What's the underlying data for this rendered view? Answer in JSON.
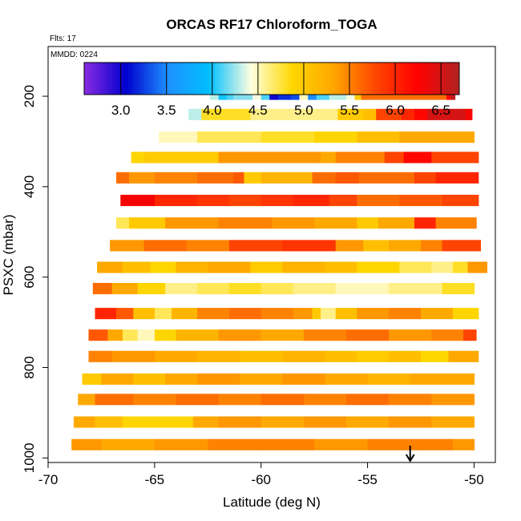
{
  "chart_data": {
    "type": "heatmap",
    "title": "ORCAS RF17 Chloroform_TOGA",
    "flights_label": "Flts: 17",
    "date_label": "MMDD: 0224",
    "xlabel": "Latitude (deg N)",
    "ylabel": "PSXC (mbar)",
    "xlim": [
      -70,
      -49
    ],
    "ylim": [
      1010,
      90
    ],
    "x_ticks": [
      -70,
      -65,
      -60,
      -55,
      -50
    ],
    "y_ticks": [
      200,
      400,
      600,
      800,
      1000
    ],
    "colorbar": {
      "min": 2.6,
      "max": 6.7,
      "ticks": [
        3.0,
        3.5,
        4.0,
        4.5,
        5.0,
        5.5,
        6.0,
        6.5
      ],
      "tick_labels": [
        "3.0",
        "3.5",
        "4.0",
        "4.5",
        "5.0",
        "5.5",
        "6.0",
        "6.5"
      ],
      "colors": [
        "#8a2be2",
        "#0000cd",
        "#1e90ff",
        "#00bfff",
        "#ffffe0",
        "#ffd700",
        "#ffa500",
        "#ff4500",
        "#ff0000",
        "#b22222"
      ]
    },
    "marker": {
      "label": "arrow",
      "latitude": -53
    },
    "rows": [
      {
        "p": 195,
        "half": 12,
        "x0": -62.4,
        "x1": -50.9,
        "segs": [
          [
            -62.4,
            4.3
          ],
          [
            -62.0,
            4.0
          ],
          [
            -61.6,
            4.1
          ],
          [
            -61.3,
            4.2
          ],
          [
            -60.4,
            4.4
          ],
          [
            -60.0,
            4.1
          ],
          [
            -59.6,
            3.0
          ],
          [
            -59.2,
            3.2
          ],
          [
            -58.6,
            3.3
          ],
          [
            -58.2,
            4.5
          ],
          [
            -57.8,
            3.5
          ],
          [
            -57.4,
            4.1
          ],
          [
            -56.8,
            4.3
          ],
          [
            -56.0,
            4.4
          ],
          [
            -55.6,
            5.0
          ],
          [
            -55.3,
            5.6
          ],
          [
            -51.3,
            6.2
          ],
          [
            -51.1,
            6.6
          ]
        ]
      },
      {
        "p": 240,
        "half": 12,
        "x0": -63.4,
        "x1": -50.1,
        "segs": [
          [
            -63.4,
            4.3
          ],
          [
            -62.8,
            4.8
          ],
          [
            -60.5,
            4.6
          ],
          [
            -56.4,
            5.0
          ],
          [
            -55.2,
            5.1
          ],
          [
            -54.6,
            5.8
          ],
          [
            -53.4,
            6.0
          ],
          [
            -52.8,
            6.2
          ],
          [
            -52.2,
            6.5
          ],
          [
            -50.4,
            6.3
          ]
        ]
      },
      {
        "p": 290,
        "half": 12,
        "x0": -64.8,
        "x1": -50.0,
        "segs": [
          [
            -64.8,
            4.5
          ],
          [
            -63.0,
            4.7
          ],
          [
            -60.0,
            4.8
          ],
          [
            -57.5,
            4.9
          ],
          [
            -55.5,
            5.1
          ],
          [
            -53.5,
            5.3
          ]
        ]
      },
      {
        "p": 335,
        "half": 12,
        "x0": -66.1,
        "x1": -49.8,
        "segs": [
          [
            -66.1,
            4.9
          ],
          [
            -65.5,
            5.0
          ],
          [
            -62.0,
            5.4
          ],
          [
            -57.2,
            5.3
          ],
          [
            -56.5,
            5.5
          ],
          [
            -54.2,
            5.8
          ],
          [
            -53.3,
            6.2
          ],
          [
            -52.0,
            5.8
          ]
        ]
      },
      {
        "p": 380,
        "half": 12,
        "x0": -66.8,
        "x1": -49.8,
        "segs": [
          [
            -66.8,
            5.6
          ],
          [
            -66.2,
            5.4
          ],
          [
            -65.0,
            5.5
          ],
          [
            -63.0,
            5.6
          ],
          [
            -61.3,
            5.7
          ],
          [
            -60.8,
            5.0
          ],
          [
            -60.0,
            5.2
          ],
          [
            -57.6,
            5.6
          ],
          [
            -56.5,
            5.7
          ],
          [
            -55.4,
            5.6
          ],
          [
            -52.8,
            5.8
          ],
          [
            -51.8,
            6.0
          ]
        ]
      },
      {
        "p": 430,
        "half": 12,
        "x0": -66.6,
        "x1": -49.8,
        "segs": [
          [
            -66.6,
            6.3
          ],
          [
            -65.0,
            6.0
          ],
          [
            -63.0,
            5.9
          ],
          [
            -61.5,
            5.8
          ],
          [
            -60.0,
            5.9
          ],
          [
            -58.5,
            6.0
          ],
          [
            -56.8,
            5.8
          ],
          [
            -55.5,
            5.6
          ],
          [
            -53.5,
            5.7
          ],
          [
            -51.5,
            5.8
          ]
        ]
      },
      {
        "p": 480,
        "half": 12,
        "x0": -66.8,
        "x1": -49.9,
        "segs": [
          [
            -66.8,
            4.7
          ],
          [
            -66.2,
            5.0
          ],
          [
            -64.5,
            5.4
          ],
          [
            -62.0,
            5.5
          ],
          [
            -59.5,
            5.4
          ],
          [
            -57.5,
            5.3
          ],
          [
            -55.5,
            5.0
          ],
          [
            -54.5,
            5.3
          ],
          [
            -52.8,
            6.0
          ],
          [
            -51.8,
            5.5
          ]
        ]
      },
      {
        "p": 530,
        "half": 12,
        "x0": -67.1,
        "x1": -49.7,
        "segs": [
          [
            -67.1,
            5.4
          ],
          [
            -65.5,
            5.6
          ],
          [
            -63.5,
            5.5
          ],
          [
            -61.5,
            5.8
          ],
          [
            -59.0,
            5.9
          ],
          [
            -56.5,
            5.4
          ],
          [
            -55.2,
            5.1
          ],
          [
            -54.0,
            5.3
          ],
          [
            -52.5,
            5.5
          ],
          [
            -51.5,
            5.8
          ]
        ]
      },
      {
        "p": 578,
        "half": 12,
        "x0": -67.7,
        "x1": -49.4,
        "segs": [
          [
            -67.7,
            5.3
          ],
          [
            -66.5,
            5.1
          ],
          [
            -65.2,
            4.9
          ],
          [
            -64.0,
            5.2
          ],
          [
            -62.5,
            5.3
          ],
          [
            -60.5,
            5.0
          ],
          [
            -59.0,
            5.2
          ],
          [
            -57.0,
            5.1
          ],
          [
            -55.5,
            4.9
          ],
          [
            -53.5,
            4.7
          ],
          [
            -52.0,
            4.6
          ],
          [
            -51.0,
            4.8
          ],
          [
            -50.3,
            5.4
          ]
        ]
      },
      {
        "p": 625,
        "half": 12,
        "x0": -67.9,
        "x1": -50.0,
        "segs": [
          [
            -67.9,
            5.6
          ],
          [
            -67.0,
            5.3
          ],
          [
            -65.8,
            4.9
          ],
          [
            -64.5,
            4.6
          ],
          [
            -63.0,
            4.7
          ],
          [
            -61.5,
            4.8
          ],
          [
            -60.0,
            4.7
          ],
          [
            -58.5,
            4.6
          ],
          [
            -56.5,
            4.5
          ],
          [
            -54.0,
            4.6
          ],
          [
            -51.5,
            4.8
          ]
        ]
      },
      {
        "p": 680,
        "half": 12,
        "x0": -67.8,
        "x1": -49.8,
        "segs": [
          [
            -67.8,
            6.0
          ],
          [
            -66.8,
            5.7
          ],
          [
            -66.0,
            5.1
          ],
          [
            -65.0,
            4.7
          ],
          [
            -64.2,
            5.2
          ],
          [
            -63.0,
            5.5
          ],
          [
            -61.5,
            5.6
          ],
          [
            -60.0,
            5.5
          ],
          [
            -58.5,
            5.4
          ],
          [
            -57.6,
            5.0
          ],
          [
            -57.2,
            4.6
          ],
          [
            -56.5,
            5.1
          ],
          [
            -55.5,
            5.4
          ],
          [
            -54.0,
            5.5
          ],
          [
            -52.5,
            5.3
          ],
          [
            -51.0,
            4.9
          ]
        ]
      },
      {
        "p": 728,
        "half": 12,
        "x0": -68.1,
        "x1": -49.9,
        "segs": [
          [
            -68.1,
            5.7
          ],
          [
            -67.2,
            5.3
          ],
          [
            -66.5,
            4.7
          ],
          [
            -65.8,
            4.5
          ],
          [
            -65.0,
            4.9
          ],
          [
            -64.0,
            5.2
          ],
          [
            -62.0,
            5.4
          ],
          [
            -60.0,
            5.3
          ],
          [
            -58.0,
            5.5
          ],
          [
            -56.0,
            5.6
          ],
          [
            -54.0,
            5.4
          ],
          [
            -52.0,
            5.5
          ],
          [
            -50.5,
            5.8
          ]
        ]
      },
      {
        "p": 775,
        "half": 12,
        "x0": -68.1,
        "x1": -49.8,
        "segs": [
          [
            -68.1,
            5.5
          ],
          [
            -67.0,
            5.4
          ],
          [
            -65.0,
            5.3
          ],
          [
            -63.0,
            5.2
          ],
          [
            -61.0,
            5.1
          ],
          [
            -59.0,
            5.2
          ],
          [
            -57.0,
            5.1
          ],
          [
            -55.5,
            5.0
          ],
          [
            -54.0,
            5.1
          ],
          [
            -52.5,
            4.9
          ],
          [
            -51.2,
            5.3
          ]
        ]
      },
      {
        "p": 825,
        "half": 12,
        "x0": -68.4,
        "x1": -50.0,
        "segs": [
          [
            -68.4,
            5.0
          ],
          [
            -67.5,
            5.3
          ],
          [
            -66.0,
            5.1
          ],
          [
            -64.5,
            5.3
          ],
          [
            -63.0,
            5.4
          ],
          [
            -61.0,
            5.3
          ],
          [
            -59.0,
            5.4
          ],
          [
            -57.0,
            5.3
          ],
          [
            -55.0,
            5.2
          ],
          [
            -53.0,
            5.3
          ],
          [
            -51.5,
            5.3
          ]
        ]
      },
      {
        "p": 870,
        "half": 12,
        "x0": -68.6,
        "x1": -50.0,
        "segs": [
          [
            -68.6,
            5.3
          ],
          [
            -67.8,
            5.6
          ],
          [
            -66.0,
            5.5
          ],
          [
            -64.0,
            5.6
          ],
          [
            -62.0,
            5.5
          ],
          [
            -60.0,
            5.6
          ],
          [
            -58.0,
            5.5
          ],
          [
            -56.0,
            5.6
          ],
          [
            -54.0,
            5.5
          ],
          [
            -52.0,
            5.4
          ]
        ]
      },
      {
        "p": 920,
        "half": 12,
        "x0": -68.8,
        "x1": -50.0,
        "segs": [
          [
            -68.8,
            5.3
          ],
          [
            -67.8,
            5.1
          ],
          [
            -66.5,
            4.9
          ],
          [
            -63.2,
            5.3
          ],
          [
            -62.0,
            5.4
          ],
          [
            -60.0,
            5.3
          ],
          [
            -58.0,
            5.4
          ],
          [
            -56.0,
            5.3
          ],
          [
            -54.0,
            5.4
          ],
          [
            -52.0,
            5.3
          ]
        ]
      },
      {
        "p": 970,
        "half": 12,
        "x0": -68.9,
        "x1": -50.0,
        "segs": [
          [
            -68.9,
            5.4
          ],
          [
            -67.5,
            5.3
          ],
          [
            -65.0,
            5.4
          ],
          [
            -62.5,
            5.5
          ],
          [
            -60.0,
            5.5
          ],
          [
            -57.5,
            5.4
          ],
          [
            -55.0,
            5.5
          ],
          [
            -52.5,
            5.5
          ],
          [
            -51.0,
            5.4
          ]
        ]
      }
    ]
  }
}
